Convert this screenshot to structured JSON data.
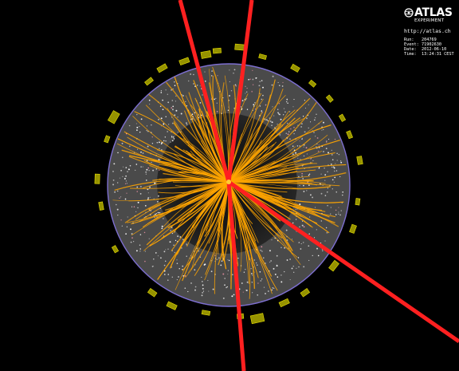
{
  "experiment": {
    "logo_text": "ATLAS",
    "logo_subtext": "EXPERIMENT",
    "url": "http://atlas.ch"
  },
  "event_info": {
    "run_label": "Run:",
    "run_value": "204769",
    "event_label": "Event:",
    "event_value": "71902630",
    "date_label": "Date:",
    "date_value": "2012-06-10",
    "time_label": "Time:",
    "time_value": "13:24:31 CEST"
  },
  "colors": {
    "background": "#000000",
    "tracks": "#ffa500",
    "high_energy_tracks": "#ff2020",
    "calorimeter_towers": "#c8c400",
    "detector_outline": "#7d6fd0",
    "detector_fill": "#4a4a4a",
    "hits": "#ffffff"
  }
}
